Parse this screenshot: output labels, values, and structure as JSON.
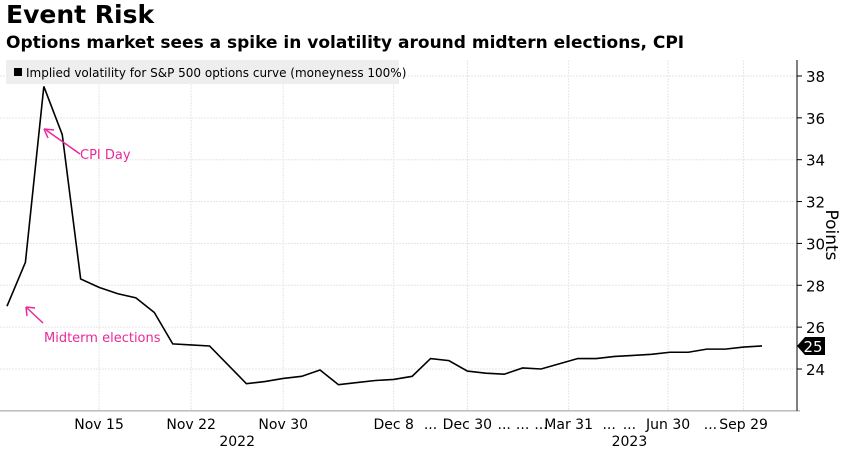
{
  "title": "Event Risk",
  "subtitle": "Options market sees a spike in volatility around midtern elections, CPI",
  "chart_data": {
    "type": "line",
    "legend": {
      "position": "top-left",
      "entries": [
        "Implied volatility for S&P 500 options curve (moneyness 100%)"
      ]
    },
    "ylabel": "Points",
    "ylim": [
      22,
      38.8
    ],
    "yticks": [
      24,
      26,
      28,
      30,
      32,
      34,
      36,
      38
    ],
    "grid": true,
    "y_axis_side": "right",
    "last_value_label": "25",
    "series": [
      {
        "name": "Implied volatility for S&P 500 options curve (moneyness 100%)",
        "color": "#000000",
        "values": [
          27.0,
          29.1,
          37.5,
          35.2,
          28.3,
          27.9,
          27.6,
          27.4,
          26.7,
          25.2,
          25.15,
          25.1,
          24.2,
          23.3,
          23.4,
          23.55,
          23.65,
          23.95,
          23.25,
          23.35,
          23.45,
          23.5,
          23.65,
          24.5,
          24.4,
          23.9,
          23.8,
          23.75,
          24.05,
          24.0,
          24.25,
          24.5,
          24.5,
          24.6,
          24.65,
          24.7,
          24.8,
          24.8,
          24.95,
          24.95,
          25.05,
          25.1
        ]
      }
    ],
    "x_tick_labels": [
      {
        "label": "Nov 15",
        "index": 5
      },
      {
        "label": "Nov 22",
        "index": 10
      },
      {
        "label": "Nov 30",
        "index": 15
      },
      {
        "label": "Dec 8",
        "index": 21
      },
      {
        "label": "...",
        "index": 23
      },
      {
        "label": "Dec 30",
        "index": 25
      },
      {
        "label": "...",
        "index": 27
      },
      {
        "label": "...",
        "index": 28
      },
      {
        "label": "...",
        "index": 29
      },
      {
        "label": "Mar 31",
        "index": 30.5
      },
      {
        "label": "...",
        "index": 32.7
      },
      {
        "label": "...",
        "index": 33.8
      },
      {
        "label": "Jun 30",
        "index": 35.9
      },
      {
        "label": "...",
        "index": 38.2
      },
      {
        "label": "Sep 29",
        "index": 40
      }
    ],
    "x_year_labels": [
      {
        "label": "2022",
        "index": 12.5
      },
      {
        "label": "2023",
        "index": 33.8
      }
    ],
    "annotations": [
      {
        "text": "CPI Day",
        "color": "#e8299a",
        "index": 2,
        "value": 35.7
      },
      {
        "text": "Midterm elections",
        "color": "#e8299a",
        "index": 1,
        "value": 28.0
      }
    ]
  }
}
